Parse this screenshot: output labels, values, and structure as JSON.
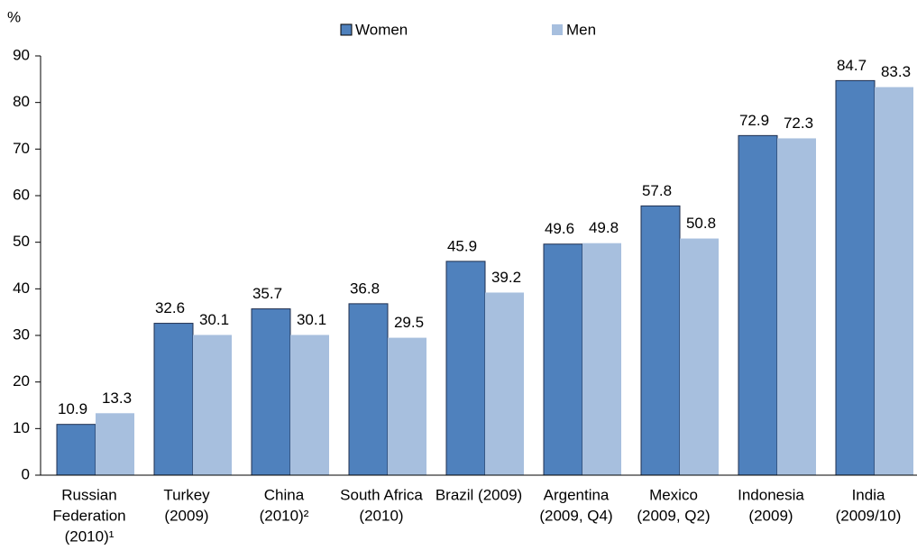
{
  "chart_data": {
    "type": "bar",
    "y_unit_label": "%",
    "categories": [
      [
        "Russian",
        "Federation",
        "(2010)¹"
      ],
      [
        "Turkey",
        "(2009)"
      ],
      [
        "China",
        "(2010)²"
      ],
      [
        "South Africa",
        "(2010)"
      ],
      [
        "Brazil (2009)"
      ],
      [
        "Argentina",
        "(2009, Q4)"
      ],
      [
        "Mexico",
        "(2009, Q2)"
      ],
      [
        "Indonesia",
        "(2009)"
      ],
      [
        "India",
        "(2009/10)"
      ]
    ],
    "series": [
      {
        "name": "Women",
        "color": "#4f81bd",
        "values": [
          10.9,
          32.6,
          35.7,
          36.8,
          45.9,
          49.6,
          57.8,
          72.9,
          84.7
        ]
      },
      {
        "name": "Men",
        "color": "#a7bfde",
        "values": [
          13.3,
          30.1,
          30.1,
          29.5,
          39.2,
          49.8,
          50.8,
          72.3,
          83.3
        ]
      }
    ],
    "ylim": [
      0,
      90
    ],
    "yticks": [
      0,
      10,
      20,
      30,
      40,
      50,
      60,
      70,
      80,
      90
    ],
    "grid": false,
    "legend": "top"
  }
}
